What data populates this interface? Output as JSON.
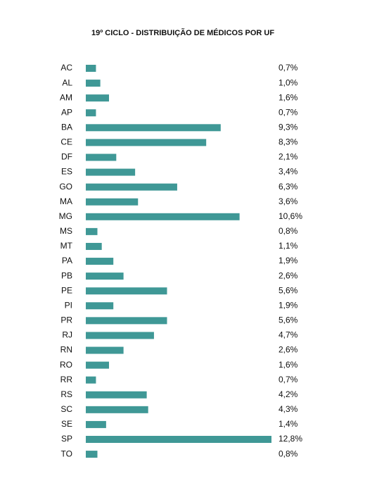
{
  "chart_data": {
    "type": "bar",
    "orientation": "horizontal",
    "title": "19º CICLO - DISTRIBUIÇÃO DE MÉDICOS POR UF",
    "categories": [
      "AC",
      "AL",
      "AM",
      "AP",
      "BA",
      "CE",
      "DF",
      "ES",
      "GO",
      "MA",
      "MG",
      "MS",
      "MT",
      "PA",
      "PB",
      "PE",
      "PI",
      "PR",
      "RJ",
      "RN",
      "RO",
      "RR",
      "RS",
      "SC",
      "SE",
      "SP",
      "TO"
    ],
    "values": [
      0.7,
      1.0,
      1.6,
      0.7,
      9.3,
      8.3,
      2.1,
      3.4,
      6.3,
      3.6,
      10.6,
      0.8,
      1.1,
      1.9,
      2.6,
      5.6,
      1.9,
      5.6,
      4.7,
      2.6,
      1.6,
      0.7,
      4.2,
      4.3,
      1.4,
      12.8,
      0.8
    ],
    "value_labels": [
      "0,7%",
      "1,0%",
      "1,6%",
      "0,7%",
      "9,3%",
      "8,3%",
      "2,1%",
      "3,4%",
      "6,3%",
      "3,6%",
      "10,6%",
      "0,8%",
      "1,1%",
      "1,9%",
      "2,6%",
      "5,6%",
      "1,9%",
      "5,6%",
      "4,7%",
      "2,6%",
      "1,6%",
      "0,7%",
      "4,2%",
      "4,3%",
      "1,4%",
      "12,8%",
      "0,8%"
    ],
    "color": "#3f9896"
  }
}
